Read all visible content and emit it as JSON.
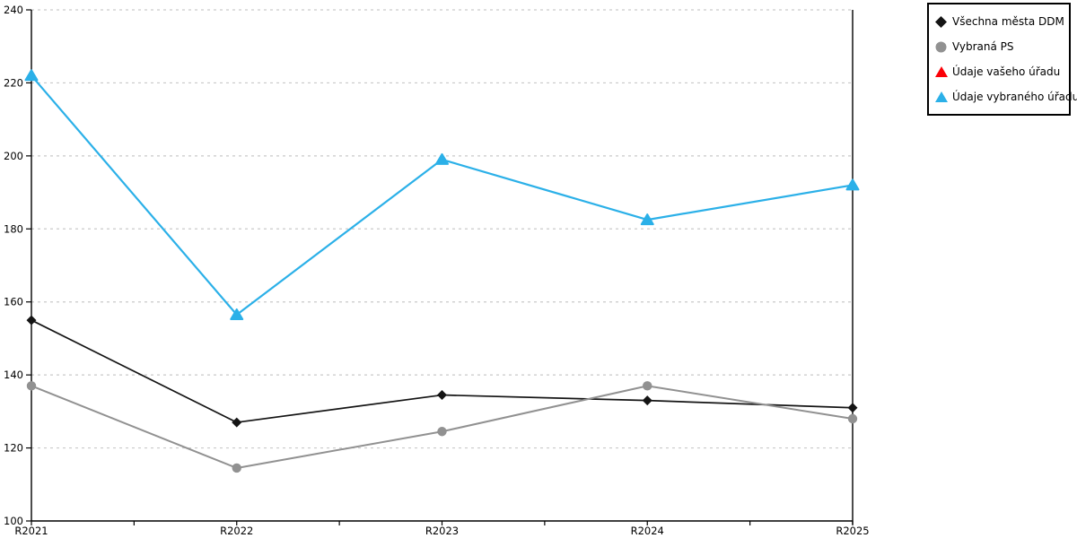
{
  "chart_data": {
    "type": "line",
    "title": "",
    "xlabel": "",
    "ylabel": "",
    "categories": [
      "R2021",
      "R2022",
      "R2023",
      "R2024",
      "R2025"
    ],
    "series": [
      {
        "name": "Všechna města DDM",
        "marker": "diamond",
        "color": "#141414",
        "values": [
          155,
          127,
          134.5,
          133,
          131
        ]
      },
      {
        "name": "Vybraná PS",
        "marker": "circle",
        "color": "#919191",
        "values": [
          137,
          114.5,
          124.5,
          137,
          128
        ]
      },
      {
        "name": "Údaje vašeho úřadu",
        "marker": "triangle",
        "color": "#FB0007",
        "values": []
      },
      {
        "name": "Údaje vybraného úřadu",
        "marker": "triangle",
        "color": "#2BB0E8",
        "values": [
          222,
          156.5,
          199,
          182.5,
          192
        ]
      }
    ],
    "ylim": [
      100,
      240
    ],
    "yticks": [
      100,
      120,
      140,
      160,
      180,
      200,
      220,
      240
    ],
    "grid": "horizontal-dashed",
    "gridline_color": "#C9C9C9",
    "axis_color": "#000000",
    "x_minor_ticks": "midpoints-unlabeled",
    "legend_position": "outside-top-right"
  }
}
